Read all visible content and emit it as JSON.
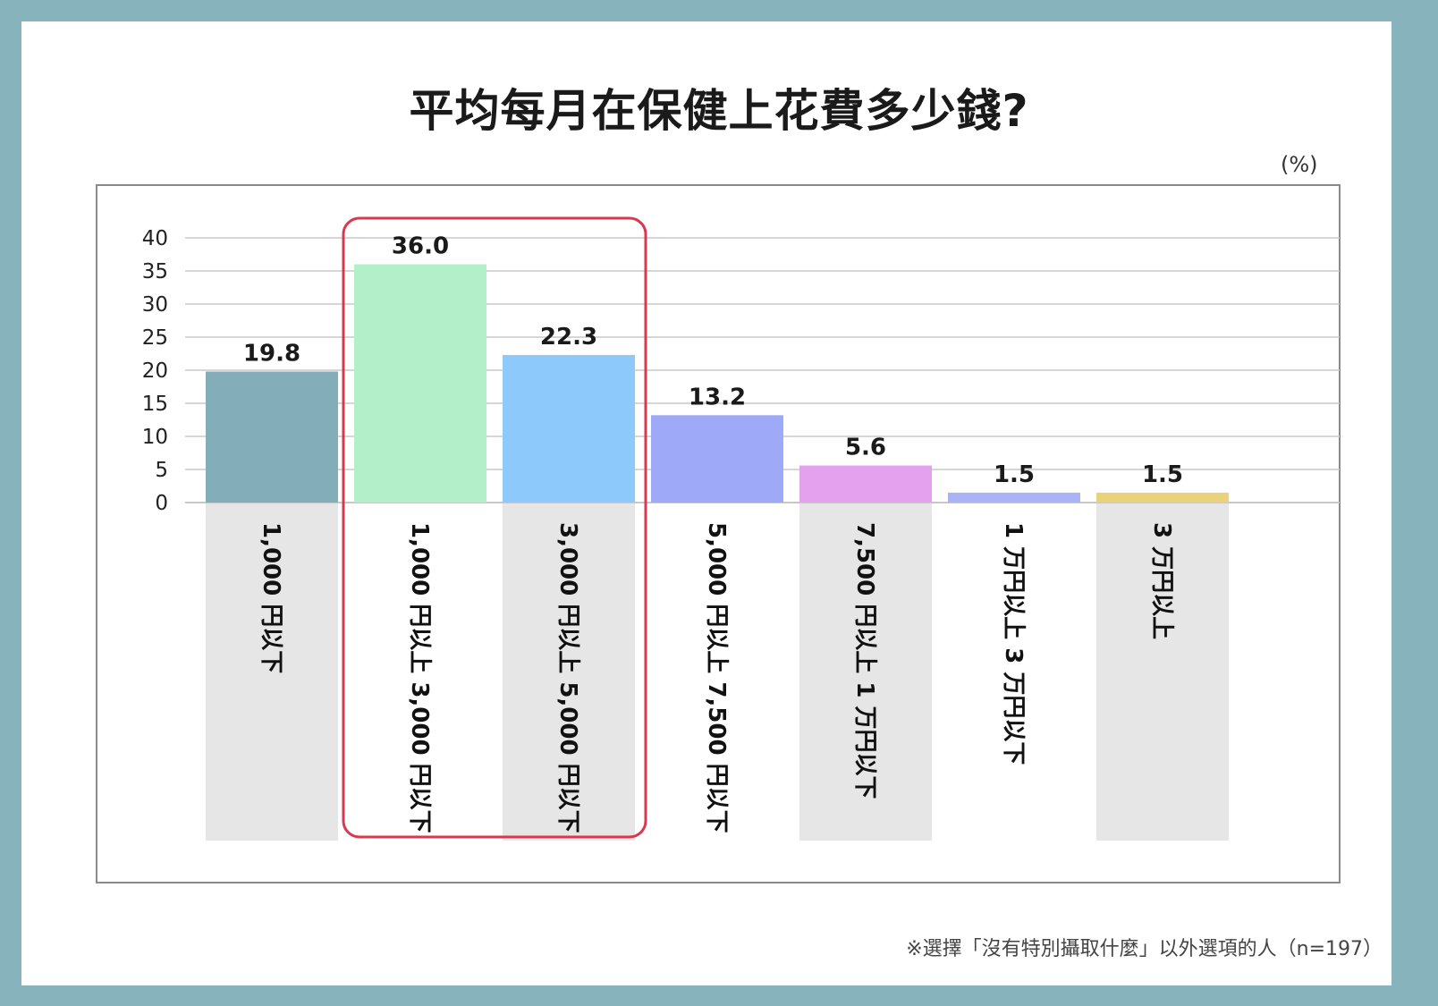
{
  "chart_data": {
    "type": "bar",
    "title": "平均每月在保健上花費多少錢?",
    "unit": "(%)",
    "ylim": [
      0,
      40
    ],
    "yticks": [
      0,
      5,
      10,
      15,
      20,
      25,
      30,
      35,
      40
    ],
    "grid": true,
    "categories": [
      "1,000 円以下",
      "1,000 円以上 3,000 円以下",
      "3,000 円以上 5,000 円以下",
      "5,000 円以上 7,500 円以下",
      "7,500 円以上 1 万円以下",
      "1 万円以上 3 万円以下",
      "3 万円以上"
    ],
    "values": [
      19.8,
      36.0,
      22.3,
      13.2,
      5.6,
      1.5,
      1.5
    ],
    "value_labels": [
      "19.8",
      "36.0",
      "22.3",
      "13.2",
      "5.6",
      "1.5",
      "1.5"
    ],
    "bar_colors": [
      "#82adb9",
      "#b3efc8",
      "#8dc9fb",
      "#9ea9f7",
      "#e4a2ee",
      "#a9b3f5",
      "#ead27c"
    ],
    "highlight": {
      "categories": [
        1,
        2
      ],
      "color": "#d9394f"
    },
    "footnote": "※選擇「沒有特別攝取什麼」以外選項的人（n=197）"
  }
}
